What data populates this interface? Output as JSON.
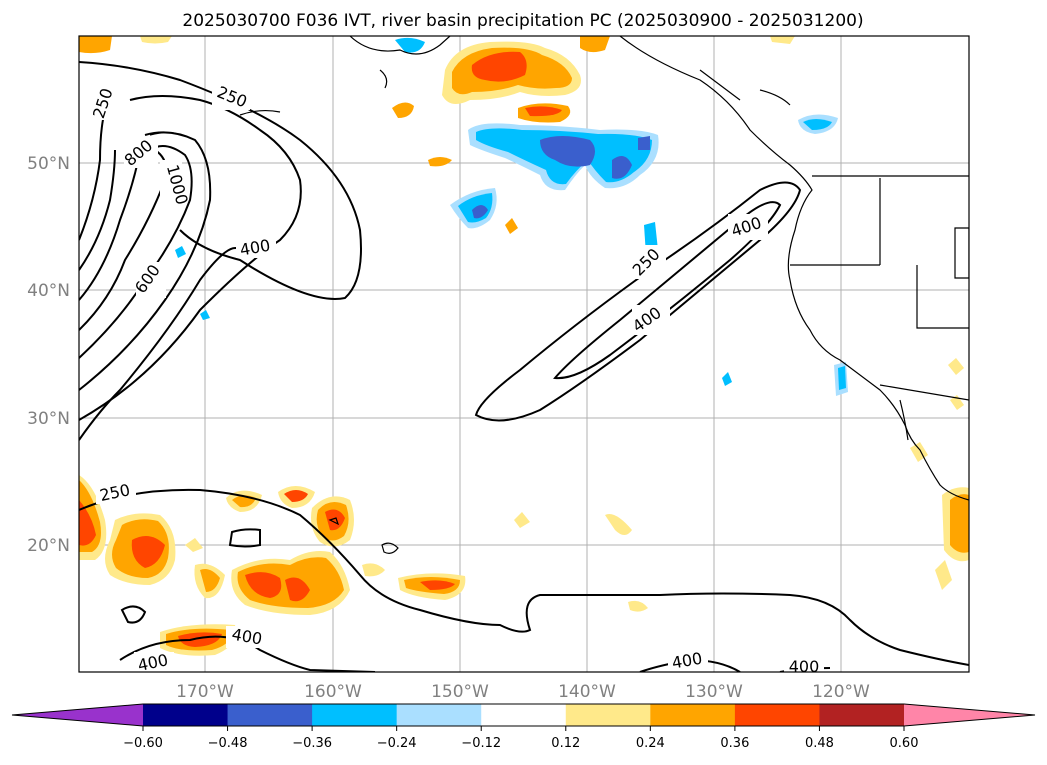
{
  "title": "2025030700 F036 IVT, river basin precipitation PC (2025030900 - 2025031200)",
  "map": {
    "lat_labels": [
      "50°N",
      "40°N",
      "30°N",
      "20°N"
    ],
    "lon_labels": [
      "170°W",
      "160°W",
      "150°W",
      "140°W",
      "130°W",
      "120°W"
    ],
    "contour_levels": [
      "250",
      "250",
      "800",
      "1000",
      "400",
      "600",
      "250",
      "400",
      "400",
      "250",
      "400",
      "400",
      "400",
      "400"
    ]
  },
  "colorbar": {
    "ticks": [
      "−0.60",
      "−0.48",
      "−0.36",
      "−0.24",
      "−0.12",
      "0.12",
      "0.24",
      "0.36",
      "0.48",
      "0.60"
    ],
    "colors": [
      "#9932cc",
      "#00008b",
      "#3a5fcd",
      "#00bfff",
      "#aadfff",
      "#ffffff",
      "#ffe98a",
      "#ffa500",
      "#ff4500",
      "#b22222",
      "#ff85a8"
    ]
  }
}
